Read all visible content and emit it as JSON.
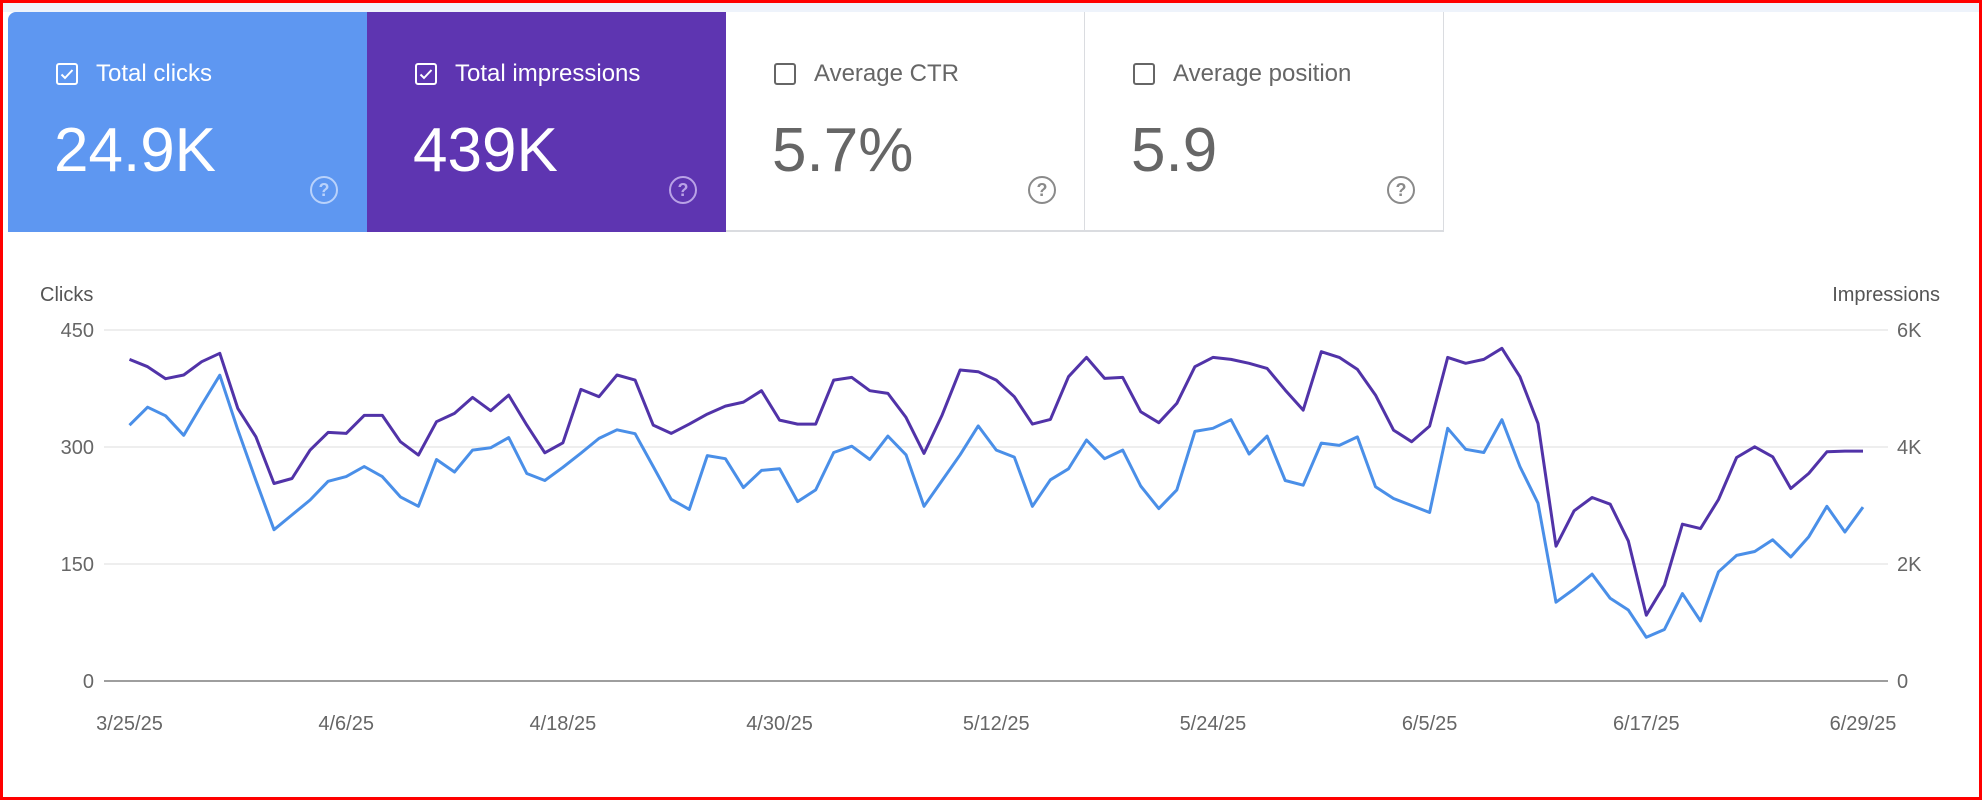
{
  "cards": [
    {
      "label": "Total clicks",
      "value": "24.9K",
      "checked": true,
      "icon": "help-icon"
    },
    {
      "label": "Total impressions",
      "value": "439K",
      "checked": true,
      "icon": "help-icon"
    },
    {
      "label": "Average CTR",
      "value": "5.7%",
      "checked": false,
      "icon": "help-icon"
    },
    {
      "label": "Average position",
      "value": "5.9",
      "checked": false,
      "icon": "help-icon"
    }
  ],
  "help_glyph": "?",
  "colors": {
    "clicks": "#4a8fe8",
    "impressions": "#5133a8",
    "clicks_card": "#5e97f1",
    "impressions_card": "#5e35b1"
  },
  "chart_data": {
    "type": "line",
    "xlabel": "",
    "ylabel_left": "Clicks",
    "ylabel_right": "Impressions",
    "start_date": "3/25/25",
    "end_date": "6/29/25",
    "x_ticks": [
      {
        "index": 0,
        "label": "3/25/25"
      },
      {
        "index": 12,
        "label": "4/6/25"
      },
      {
        "index": 24,
        "label": "4/18/25"
      },
      {
        "index": 36,
        "label": "4/30/25"
      },
      {
        "index": 48,
        "label": "5/12/25"
      },
      {
        "index": 60,
        "label": "5/24/25"
      },
      {
        "index": 72,
        "label": "6/5/25"
      },
      {
        "index": 84,
        "label": "6/17/25"
      },
      {
        "index": 96,
        "label": "6/29/25"
      }
    ],
    "y_left": {
      "range": [
        0,
        450
      ],
      "ticks": [
        "0",
        "150",
        "300",
        "450"
      ],
      "tick_values": [
        0,
        150,
        300,
        450
      ]
    },
    "y_right": {
      "range": [
        0,
        6000
      ],
      "ticks": [
        "0",
        "2K",
        "4K",
        "6K"
      ],
      "tick_values": [
        0,
        2000,
        4000,
        6000
      ]
    },
    "grid": true,
    "series": [
      {
        "name": "Clicks",
        "axis": "left",
        "values": [
          328,
          351,
          340,
          315,
          354,
          392,
          322,
          257,
          194,
          213,
          232,
          256,
          262,
          275,
          262,
          236,
          224,
          284,
          268,
          296,
          299,
          312,
          266,
          257,
          274,
          292,
          311,
          322,
          317,
          275,
          233,
          220,
          289,
          285,
          248,
          270,
          272,
          230,
          245,
          293,
          301,
          284,
          314,
          290,
          224,
          257,
          290,
          327,
          296,
          287,
          224,
          258,
          272,
          309,
          285,
          296,
          250,
          221,
          245,
          320,
          324,
          335,
          291,
          314,
          257,
          251,
          305,
          302,
          313,
          249,
          234,
          225,
          216,
          324,
          297,
          293,
          335,
          275,
          228,
          101,
          118,
          137,
          106,
          91,
          56,
          66,
          112,
          77,
          140,
          161,
          166,
          181,
          159,
          185,
          224,
          191,
          223
        ]
      },
      {
        "name": "Impressions",
        "axis": "right",
        "values": [
          5498,
          5373,
          5167,
          5230,
          5458,
          5601,
          4660,
          4175,
          3376,
          3462,
          3947,
          4249,
          4232,
          4540,
          4540,
          4090,
          3861,
          4432,
          4574,
          4848,
          4620,
          4888,
          4375,
          3901,
          4072,
          4985,
          4859,
          5230,
          5144,
          4375,
          4232,
          4392,
          4563,
          4700,
          4768,
          4962,
          4460,
          4392,
          4392,
          5144,
          5190,
          4962,
          4916,
          4506,
          3890,
          4546,
          5316,
          5287,
          5144,
          4859,
          4392,
          4472,
          5202,
          5532,
          5173,
          5190,
          4603,
          4415,
          4745,
          5373,
          5532,
          5498,
          5430,
          5344,
          4973,
          4631,
          5629,
          5532,
          5327,
          4888,
          4289,
          4090,
          4357,
          5532,
          5430,
          5498,
          5687,
          5202,
          4403,
          2304,
          2909,
          3137,
          3023,
          2395,
          1124,
          1637,
          2681,
          2605,
          3103,
          3821,
          4004,
          3833,
          3291,
          3548,
          3918,
          3930,
          3930
        ]
      }
    ]
  }
}
